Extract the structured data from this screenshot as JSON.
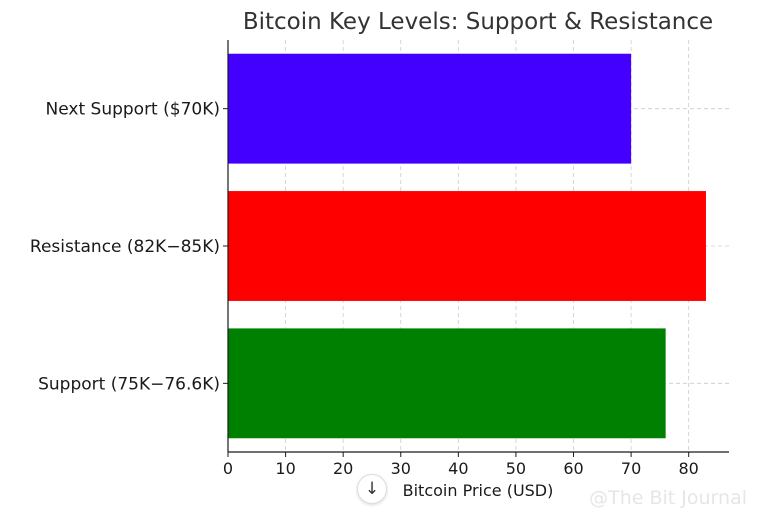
{
  "chart_data": {
    "type": "bar",
    "orientation": "horizontal",
    "title": "Bitcoin Key Levels: Support & Resistance",
    "xlabel": "Bitcoin Price (USD)",
    "ylabel": "",
    "categories": [
      "Support (75K−76.6K)",
      "Resistance (82K−85K)",
      "Next Support ($70K)"
    ],
    "values": [
      76,
      83,
      70
    ],
    "colors": [
      "#008000",
      "#ff0000",
      "#4400ff"
    ],
    "xlim": [
      0,
      87
    ],
    "xticks": [
      0,
      10,
      20,
      30,
      40,
      50,
      60,
      70,
      80
    ],
    "grid": true
  },
  "watermark": "@The Bit Journal",
  "scroll_button": {
    "icon": "arrow-down-icon",
    "glyph": "↓"
  }
}
